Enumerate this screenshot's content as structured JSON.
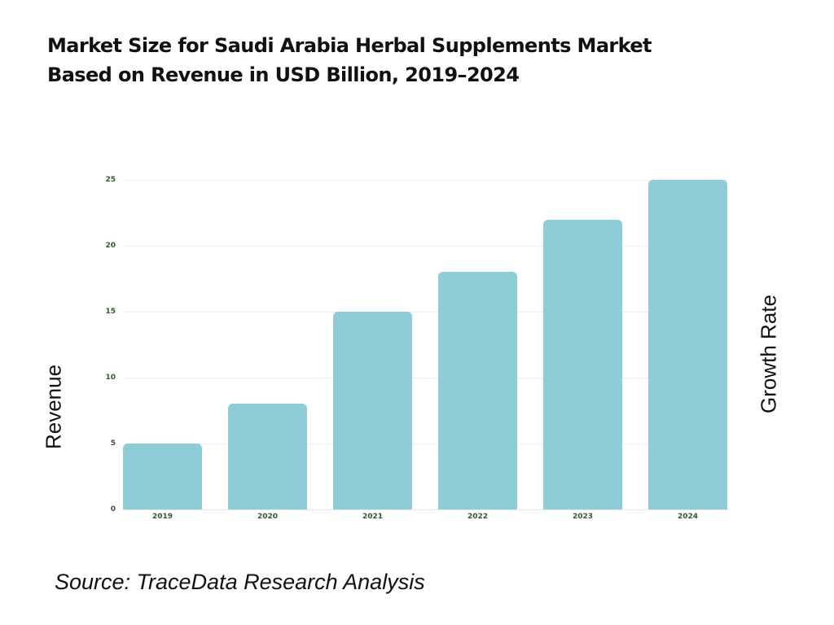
{
  "title": {
    "line1": "Market Size for Saudi Arabia Herbal Supplements Market",
    "line2": "Based on Revenue in USD Billion, 2019–2024"
  },
  "axes": {
    "left_label": "Revenue",
    "right_label": "Growth Rate",
    "y_ticks": [
      "0",
      "5",
      "10",
      "15",
      "20",
      "25"
    ]
  },
  "source": "Source: TraceData Research Analysis",
  "colors": {
    "bar": "#8ecdd8",
    "tick_text": "#2e5a2e",
    "gridline": "#efefef"
  },
  "chart_data": {
    "type": "bar",
    "title": "Market Size for Saudi Arabia Herbal Supplements Market Based on Revenue in USD Billion, 2019–2024",
    "categories": [
      "2019",
      "2020",
      "2021",
      "2022",
      "2023",
      "2024"
    ],
    "values": [
      5,
      8,
      15,
      18,
      22,
      25
    ],
    "xlabel": "",
    "ylabel": "Revenue",
    "y2label": "Growth Rate",
    "ylim": [
      0,
      25
    ],
    "yticks": [
      0,
      5,
      10,
      15,
      20,
      25
    ],
    "grid": true,
    "legend": null
  }
}
